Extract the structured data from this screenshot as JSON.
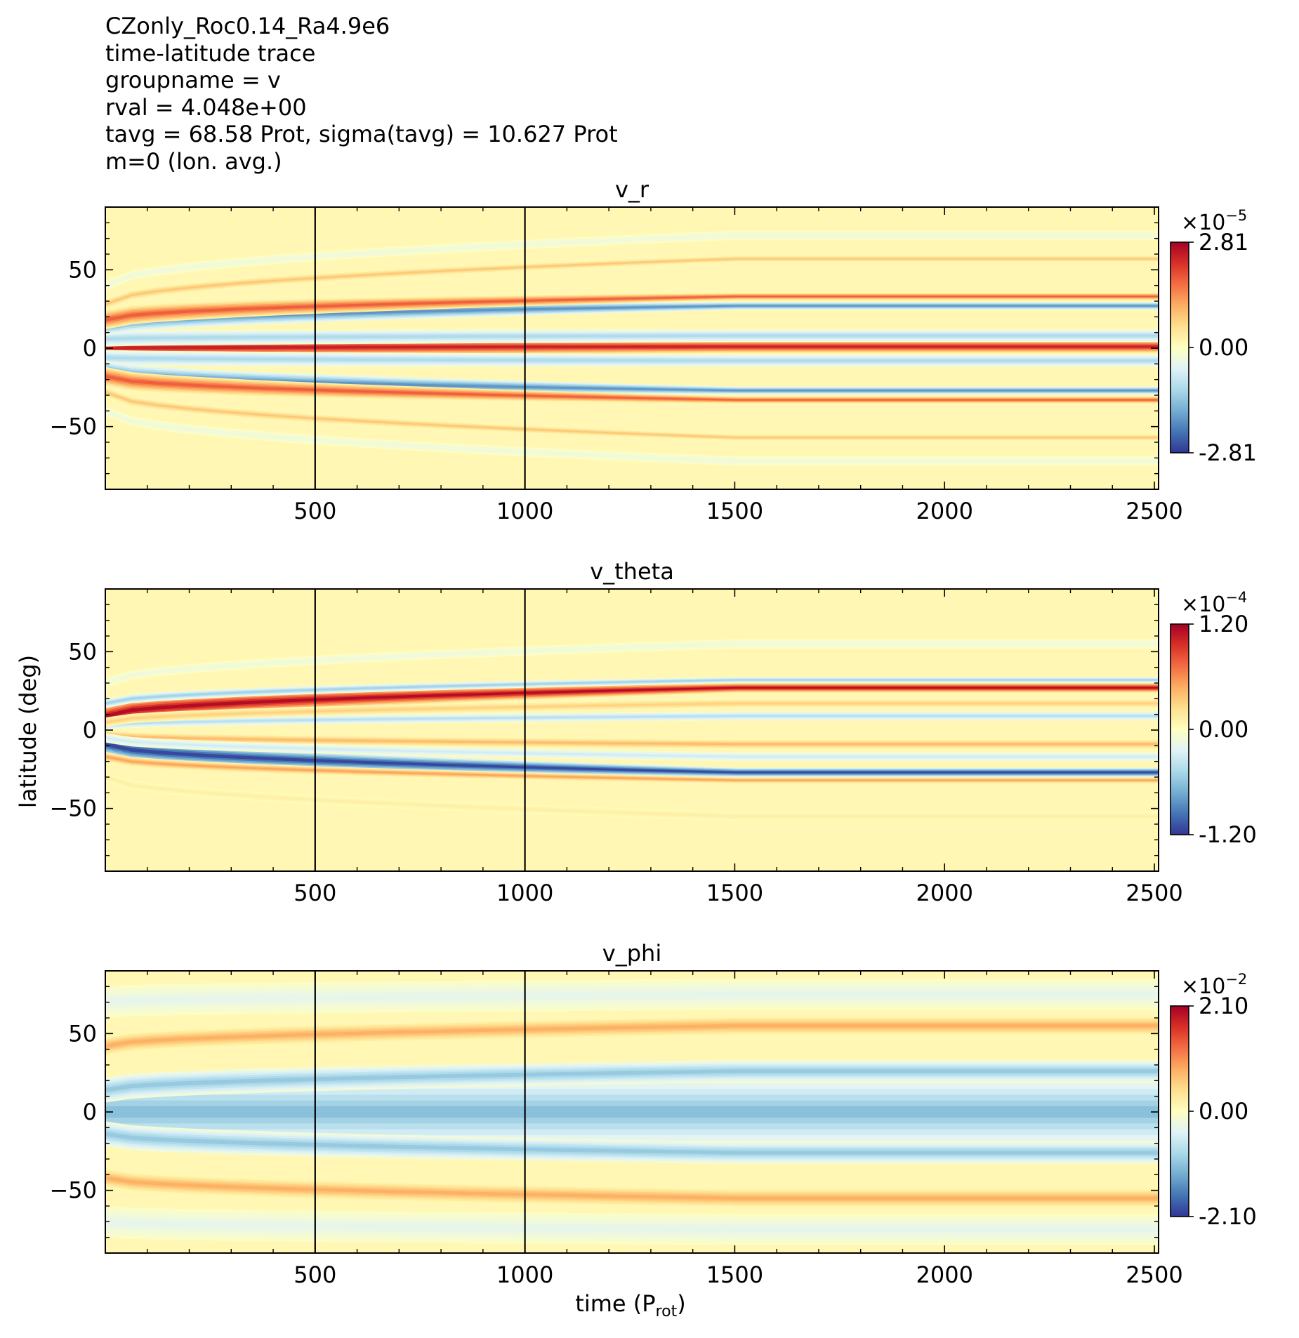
{
  "header_lines": [
    "CZonly_Roc0.14_Ra4.9e6",
    "time-latitude trace",
    "groupname = v",
    "rval = 4.048e+00",
    "tavg = 68.58 Prot, sigma(tavg) = 10.627 Prot",
    "m=0 (lon. avg.)"
  ],
  "ylabel": "latitude (deg)",
  "xlabel_main": "time (P",
  "xlabel_sub": "rot",
  "xlabel_close": ")",
  "colors": {
    "cmap": [
      "#313695",
      "#4575b4",
      "#74add1",
      "#abd9e9",
      "#e0f3f8",
      "#ffffbf",
      "#fee090",
      "#fdae61",
      "#f46d43",
      "#d73027",
      "#a50026"
    ]
  },
  "chart_data": [
    {
      "type": "heatmap",
      "title": "v_r",
      "xlim": [
        0,
        2510
      ],
      "ylim": [
        -90,
        90
      ],
      "x_ticks": [
        500,
        1000,
        1500,
        2000,
        2500
      ],
      "y_ticks": [
        -50,
        0,
        50
      ],
      "y_tick_labels": [
        "−50",
        "0",
        "50"
      ],
      "vlines": [
        500,
        1000
      ],
      "colorbar": {
        "max_label": "2.81",
        "mid_label": "0.00",
        "min_label": "-2.81",
        "exp_base": "×10",
        "exp": "−5",
        "vmin": -2.81e-05,
        "vmax": 2.81e-05
      },
      "bands": [
        {
          "lat0": 0,
          "lat1": 1,
          "width0": 6,
          "width1": 4,
          "amp": 1.0
        },
        {
          "lat0": 6,
          "lat1": 8,
          "width0": 5,
          "width1": 4,
          "amp": -0.45
        },
        {
          "lat0": 15,
          "lat1": 27,
          "width0": 7,
          "width1": 2.5,
          "amp": -0.8
        },
        {
          "lat0": 18,
          "lat1": 33,
          "width0": 6,
          "width1": 2.2,
          "amp": 0.75
        },
        {
          "lat0": 28,
          "lat1": 57,
          "width0": 3,
          "width1": 2,
          "amp": 0.35
        },
        {
          "lat0": 40,
          "lat1": 72,
          "width0": 3,
          "width1": 3,
          "amp": -0.12
        },
        {
          "lat0": -6,
          "lat1": -8,
          "width0": 5,
          "width1": 4,
          "amp": -0.45
        },
        {
          "lat0": -15,
          "lat1": -27,
          "width0": 7,
          "width1": 2.5,
          "amp": -0.8
        },
        {
          "lat0": -18,
          "lat1": -33,
          "width0": 6,
          "width1": 2.2,
          "amp": 0.75
        },
        {
          "lat0": -28,
          "lat1": -57,
          "width0": 3,
          "width1": 2,
          "amp": 0.35
        },
        {
          "lat0": -40,
          "lat1": -72,
          "width0": 3,
          "width1": 3,
          "amp": -0.12
        }
      ]
    },
    {
      "type": "heatmap",
      "title": "v_theta",
      "xlim": [
        0,
        2510
      ],
      "ylim": [
        -90,
        90
      ],
      "x_ticks": [
        500,
        1000,
        1500,
        2000,
        2500
      ],
      "y_ticks": [
        -50,
        0,
        50
      ],
      "y_tick_labels": [
        "−50",
        "0",
        "50"
      ],
      "vlines": [
        500,
        1000
      ],
      "colorbar": {
        "max_label": "1.20",
        "mid_label": "0.00",
        "min_label": "-1.20",
        "exp_base": "×10",
        "exp": "−4",
        "vmin": -0.00012,
        "vmax": 0.00012
      },
      "bands": [
        {
          "lat0": 9,
          "lat1": 27,
          "width0": 7,
          "width1": 3,
          "amp": 1.1
        },
        {
          "lat0": -9,
          "lat1": -27,
          "width0": 7,
          "width1": 3,
          "amp": -1.1
        },
        {
          "lat0": 17,
          "lat1": 32,
          "width0": 3,
          "width1": 2,
          "amp": -0.5
        },
        {
          "lat0": -17,
          "lat1": -32,
          "width0": 3,
          "width1": 2,
          "amp": 0.5
        },
        {
          "lat0": 3,
          "lat1": 9,
          "width0": 3,
          "width1": 3,
          "amp": -0.4
        },
        {
          "lat0": -3,
          "lat1": -9,
          "width0": 3,
          "width1": 3,
          "amp": 0.4
        },
        {
          "lat0": 5,
          "lat1": 17,
          "width0": 3,
          "width1": 3,
          "amp": 0.3
        },
        {
          "lat0": -5,
          "lat1": -17,
          "width0": 3,
          "width1": 3,
          "amp": -0.3
        },
        {
          "lat0": 30,
          "lat1": 55,
          "width0": 3,
          "width1": 3,
          "amp": -0.12
        },
        {
          "lat0": -30,
          "lat1": -55,
          "width0": 3,
          "width1": 3,
          "amp": 0.12
        }
      ]
    },
    {
      "type": "heatmap",
      "title": "v_phi",
      "xlim": [
        0,
        2510
      ],
      "ylim": [
        -90,
        90
      ],
      "x_ticks": [
        500,
        1000,
        1500,
        2000,
        2500
      ],
      "y_ticks": [
        -50,
        0,
        50
      ],
      "y_tick_labels": [
        "−50",
        "0",
        "50"
      ],
      "vlines": [
        500,
        1000
      ],
      "colorbar": {
        "max_label": "2.10",
        "mid_label": "0.00",
        "min_label": "-2.10",
        "exp_base": "×10",
        "exp": "−2",
        "vmin": -0.021,
        "vmax": 0.021
      },
      "bands": [
        {
          "lat0": 0,
          "lat1": 0,
          "width0": 22,
          "width1": 22,
          "amp": -0.6
        },
        {
          "lat0": 14,
          "lat1": 26,
          "width0": 8,
          "width1": 7,
          "amp": -0.55
        },
        {
          "lat0": -14,
          "lat1": -26,
          "width0": 8,
          "width1": 7,
          "amp": -0.55
        },
        {
          "lat0": 42,
          "lat1": 55,
          "width0": 6,
          "width1": 6,
          "amp": 0.45
        },
        {
          "lat0": -42,
          "lat1": -55,
          "width0": 6,
          "width1": 6,
          "amp": 0.45
        },
        {
          "lat0": 70,
          "lat1": 75,
          "width0": 10,
          "width1": 10,
          "amp": -0.18
        },
        {
          "lat0": -70,
          "lat1": -75,
          "width0": 10,
          "width1": 10,
          "amp": -0.18
        }
      ]
    }
  ]
}
